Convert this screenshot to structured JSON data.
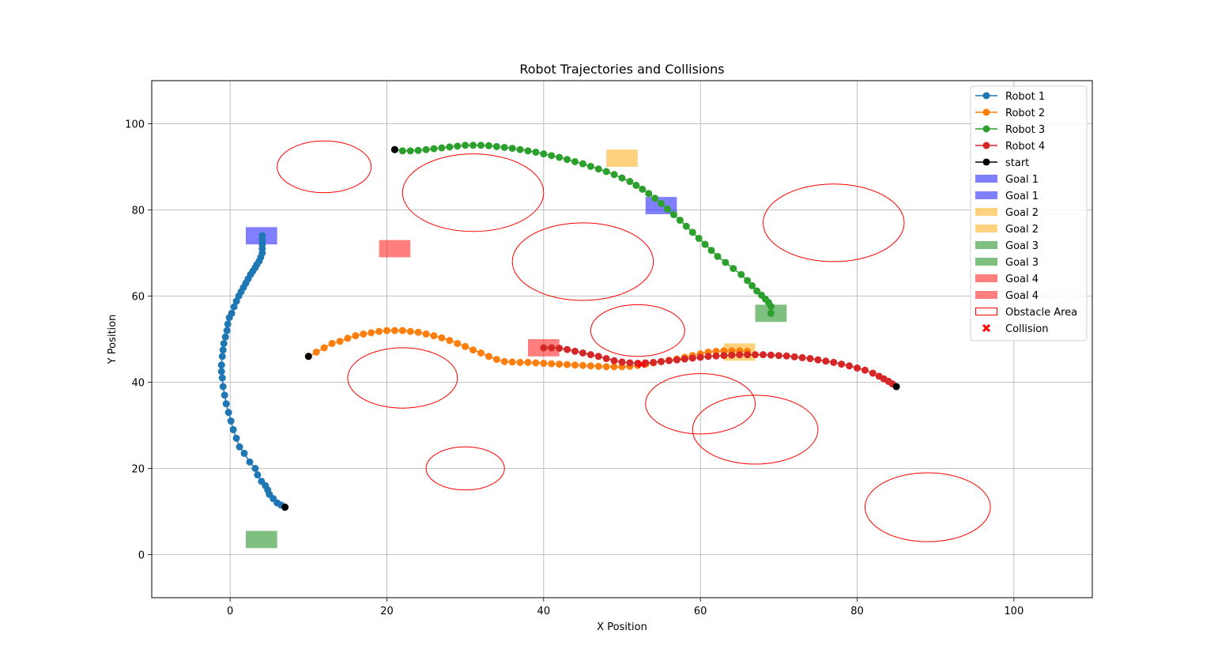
{
  "chart_data": {
    "type": "scatter",
    "title": "Robot Trajectories and Collisions",
    "xlabel": "X Position",
    "ylabel": "Y Position",
    "xlim": [
      -10,
      110
    ],
    "ylim": [
      -10,
      110
    ],
    "xticks": [
      0,
      20,
      40,
      60,
      80,
      100
    ],
    "yticks": [
      0,
      20,
      40,
      60,
      80,
      100
    ],
    "grid": true,
    "legend_position": "top-right",
    "series": [
      {
        "name": "Robot 1",
        "color": "#1f77b4",
        "points": [
          [
            7,
            11
          ],
          [
            6.5,
            11.5
          ],
          [
            6,
            12
          ],
          [
            5.5,
            13
          ],
          [
            5,
            14
          ],
          [
            4.8,
            15
          ],
          [
            4.5,
            16
          ],
          [
            4,
            17
          ],
          [
            3.5,
            18.5
          ],
          [
            3.2,
            20
          ],
          [
            2.5,
            21.5
          ],
          [
            1.8,
            23.5
          ],
          [
            1.2,
            25
          ],
          [
            0.8,
            27
          ],
          [
            0.4,
            29
          ],
          [
            0.1,
            31
          ],
          [
            -0.2,
            33
          ],
          [
            -0.5,
            35
          ],
          [
            -0.7,
            37
          ],
          [
            -0.9,
            39
          ],
          [
            -1,
            41
          ],
          [
            -1.1,
            42.5
          ],
          [
            -1.1,
            44
          ],
          [
            -1,
            46
          ],
          [
            -0.9,
            47.5
          ],
          [
            -0.8,
            49
          ],
          [
            -0.6,
            50.5
          ],
          [
            -0.4,
            52
          ],
          [
            -0.3,
            53.5
          ],
          [
            -0.1,
            55
          ],
          [
            0.2,
            56
          ],
          [
            0.5,
            57.5
          ],
          [
            0.8,
            58.8
          ],
          [
            1.1,
            60
          ],
          [
            1.4,
            61
          ],
          [
            1.7,
            62
          ],
          [
            2,
            63
          ],
          [
            2.3,
            64
          ],
          [
            2.6,
            65
          ],
          [
            2.9,
            65.8
          ],
          [
            3.2,
            66.6
          ],
          [
            3.4,
            67.3
          ],
          [
            3.7,
            68.1
          ],
          [
            3.9,
            69
          ],
          [
            4.1,
            70
          ],
          [
            4.1,
            71
          ],
          [
            4.1,
            72
          ],
          [
            4.1,
            73
          ],
          [
            4.1,
            74
          ]
        ]
      },
      {
        "name": "Robot 2",
        "color": "#ff7f0e",
        "points": [
          [
            10,
            46
          ],
          [
            11,
            47
          ],
          [
            12,
            48
          ],
          [
            13,
            49
          ],
          [
            14,
            49.5
          ],
          [
            15,
            50.2
          ],
          [
            16,
            50.8
          ],
          [
            17,
            51.2
          ],
          [
            18,
            51.5
          ],
          [
            19,
            51.8
          ],
          [
            20,
            52
          ],
          [
            21,
            52
          ],
          [
            22,
            52
          ],
          [
            23,
            51.8
          ],
          [
            24,
            51.6
          ],
          [
            25,
            51.2
          ],
          [
            26,
            50.8
          ],
          [
            27,
            50.3
          ],
          [
            28,
            49.7
          ],
          [
            29,
            49
          ],
          [
            30,
            48.3
          ],
          [
            31,
            47.5
          ],
          [
            32,
            46.8
          ],
          [
            33,
            46
          ],
          [
            34,
            45.3
          ],
          [
            35,
            44.8
          ],
          [
            36,
            44.7
          ],
          [
            37,
            44.6
          ],
          [
            38,
            44.6
          ],
          [
            39,
            44.5
          ],
          [
            40,
            44.4
          ],
          [
            41,
            44.3
          ],
          [
            42,
            44.2
          ],
          [
            43,
            44.1
          ],
          [
            44,
            44
          ],
          [
            45,
            43.9
          ],
          [
            46,
            43.8
          ],
          [
            47,
            43.7
          ],
          [
            48,
            43.6
          ],
          [
            49,
            43.6
          ],
          [
            50,
            43.6
          ],
          [
            51,
            43.7
          ],
          [
            52,
            43.9
          ],
          [
            53,
            44.2
          ],
          [
            54,
            44.5
          ],
          [
            55,
            44.8
          ],
          [
            56,
            45.1
          ],
          [
            57,
            45.4
          ],
          [
            58,
            45.8
          ],
          [
            59,
            46.2
          ],
          [
            60,
            46.6
          ],
          [
            61,
            47
          ],
          [
            62,
            47.2
          ],
          [
            63,
            47.3
          ],
          [
            64,
            47.3
          ],
          [
            65,
            47.3
          ],
          [
            66,
            47.2
          ]
        ]
      },
      {
        "name": "Robot 3",
        "color": "#2ca02c",
        "points": [
          [
            21,
            94
          ],
          [
            22,
            93.7
          ],
          [
            23,
            93.7
          ],
          [
            24,
            93.8
          ],
          [
            25,
            94
          ],
          [
            26,
            94.2
          ],
          [
            27,
            94.4
          ],
          [
            28,
            94.6
          ],
          [
            29,
            94.8
          ],
          [
            30,
            95
          ],
          [
            31,
            95
          ],
          [
            32,
            95
          ],
          [
            33,
            94.9
          ],
          [
            34,
            94.7
          ],
          [
            35,
            94.5
          ],
          [
            36,
            94.3
          ],
          [
            37,
            94
          ],
          [
            38,
            93.7
          ],
          [
            39,
            93.4
          ],
          [
            40,
            93
          ],
          [
            41,
            92.6
          ],
          [
            42,
            92.2
          ],
          [
            43,
            91.7
          ],
          [
            44,
            91.2
          ],
          [
            45,
            90.7
          ],
          [
            46,
            90.1
          ],
          [
            47,
            89.5
          ],
          [
            48,
            88.9
          ],
          [
            49,
            88.2
          ],
          [
            50,
            87.4
          ],
          [
            51,
            86.6
          ],
          [
            51.8,
            85.7
          ],
          [
            52.6,
            84.8
          ],
          [
            53.4,
            83.8
          ],
          [
            54.2,
            82.7
          ],
          [
            55,
            81.5
          ],
          [
            55.8,
            80.2
          ],
          [
            56.6,
            78.9
          ],
          [
            57.4,
            77.6
          ],
          [
            58.2,
            76.2
          ],
          [
            59,
            74.8
          ],
          [
            59.8,
            73.4
          ],
          [
            60.6,
            72
          ],
          [
            61.4,
            70.6
          ],
          [
            62.2,
            69.2
          ],
          [
            63.2,
            67.8
          ],
          [
            64.2,
            66.4
          ],
          [
            65.2,
            65
          ],
          [
            66,
            63.6
          ],
          [
            66.6,
            62.4
          ],
          [
            67.2,
            61.2
          ],
          [
            67.8,
            60.2
          ],
          [
            68.3,
            59.3
          ],
          [
            68.7,
            58.5
          ],
          [
            69,
            57.6
          ],
          [
            69,
            56
          ]
        ]
      },
      {
        "name": "Robot 4",
        "color": "#d62728",
        "points": [
          [
            85,
            39
          ],
          [
            84.5,
            39.6
          ],
          [
            84,
            40.2
          ],
          [
            83.4,
            40.8
          ],
          [
            82.8,
            41.4
          ],
          [
            82,
            42.1
          ],
          [
            81,
            42.8
          ],
          [
            80,
            43.3
          ],
          [
            79,
            43.8
          ],
          [
            78,
            44.2
          ],
          [
            77,
            44.6
          ],
          [
            76,
            44.9
          ],
          [
            75,
            45.2
          ],
          [
            74,
            45.5
          ],
          [
            73,
            45.7
          ],
          [
            72,
            45.9
          ],
          [
            71,
            46.1
          ],
          [
            70,
            46.2
          ],
          [
            69,
            46.3
          ],
          [
            68,
            46.4
          ],
          [
            67,
            46.4
          ],
          [
            66,
            46.4
          ],
          [
            65,
            46.4
          ],
          [
            64,
            46.3
          ],
          [
            63,
            46.2
          ],
          [
            62,
            46.1
          ],
          [
            61,
            46
          ],
          [
            60,
            45.8
          ],
          [
            59,
            45.6
          ],
          [
            58,
            45.4
          ],
          [
            57,
            45.2
          ],
          [
            56,
            45
          ],
          [
            55,
            44.8
          ],
          [
            54,
            44.6
          ],
          [
            53,
            44.5
          ],
          [
            52,
            44.4
          ],
          [
            51,
            44.5
          ],
          [
            50,
            44.7
          ],
          [
            49,
            45
          ],
          [
            48,
            45.5
          ],
          [
            47,
            46
          ],
          [
            46,
            46.4
          ],
          [
            45,
            46.8
          ],
          [
            44,
            47.2
          ],
          [
            43,
            47.6
          ],
          [
            42,
            47.9
          ],
          [
            41,
            48
          ],
          [
            40,
            48
          ]
        ]
      }
    ],
    "starts": {
      "name": "start",
      "color": "#000000",
      "points": [
        [
          7,
          11
        ],
        [
          10,
          46
        ],
        [
          21,
          94
        ],
        [
          85,
          39
        ]
      ]
    },
    "goals": [
      {
        "name": "Goal 1",
        "color": "#0000ff",
        "x": 2,
        "y": 72,
        "w": 4,
        "h": 4
      },
      {
        "name": "Goal 1",
        "color": "#0000ff",
        "x": 53,
        "y": 79,
        "w": 4,
        "h": 4
      },
      {
        "name": "Goal 2",
        "color": "#ffa500",
        "x": 48,
        "y": 90,
        "w": 4,
        "h": 4
      },
      {
        "name": "Goal 2",
        "color": "#ffa500",
        "x": 63,
        "y": 45,
        "w": 4,
        "h": 4
      },
      {
        "name": "Goal 3",
        "color": "#008000",
        "x": 67,
        "y": 54,
        "w": 4,
        "h": 4
      },
      {
        "name": "Goal 3",
        "color": "#008000",
        "x": 2,
        "y": 1.5,
        "w": 4,
        "h": 4
      },
      {
        "name": "Goal 4",
        "color": "#ff0000",
        "x": 19,
        "y": 69,
        "w": 4,
        "h": 4
      },
      {
        "name": "Goal 4",
        "color": "#ff0000",
        "x": 38,
        "y": 46,
        "w": 4,
        "h": 4
      }
    ],
    "obstacles": {
      "name": "Obstacle Area",
      "color": "#ff0000",
      "ellipses": [
        {
          "cx": 12,
          "cy": 90,
          "rx": 6,
          "ry": 6
        },
        {
          "cx": 31,
          "cy": 84,
          "rx": 9,
          "ry": 9
        },
        {
          "cx": 45,
          "cy": 68,
          "rx": 9,
          "ry": 9
        },
        {
          "cx": 52,
          "cy": 52,
          "rx": 6,
          "ry": 6
        },
        {
          "cx": 77,
          "cy": 77,
          "rx": 9,
          "ry": 9
        },
        {
          "cx": 22,
          "cy": 41,
          "rx": 7,
          "ry": 7
        },
        {
          "cx": 60,
          "cy": 35,
          "rx": 7,
          "ry": 7
        },
        {
          "cx": 67,
          "cy": 29,
          "rx": 8,
          "ry": 8
        },
        {
          "cx": 30,
          "cy": 20,
          "rx": 5,
          "ry": 5
        },
        {
          "cx": 89,
          "cy": 11,
          "rx": 8,
          "ry": 8
        }
      ]
    },
    "collisions": {
      "name": "Collision",
      "color": "#ff0000",
      "points": [
        [
          52.5,
          44.2
        ]
      ]
    },
    "legend": [
      "Robot 1",
      "Robot 2",
      "Robot 3",
      "Robot 4",
      "start",
      "Goal 1",
      "Goal 1",
      "Goal 2",
      "Goal 2",
      "Goal 3",
      "Goal 3",
      "Goal 4",
      "Goal 4",
      "Obstacle Area",
      "Collision"
    ]
  }
}
